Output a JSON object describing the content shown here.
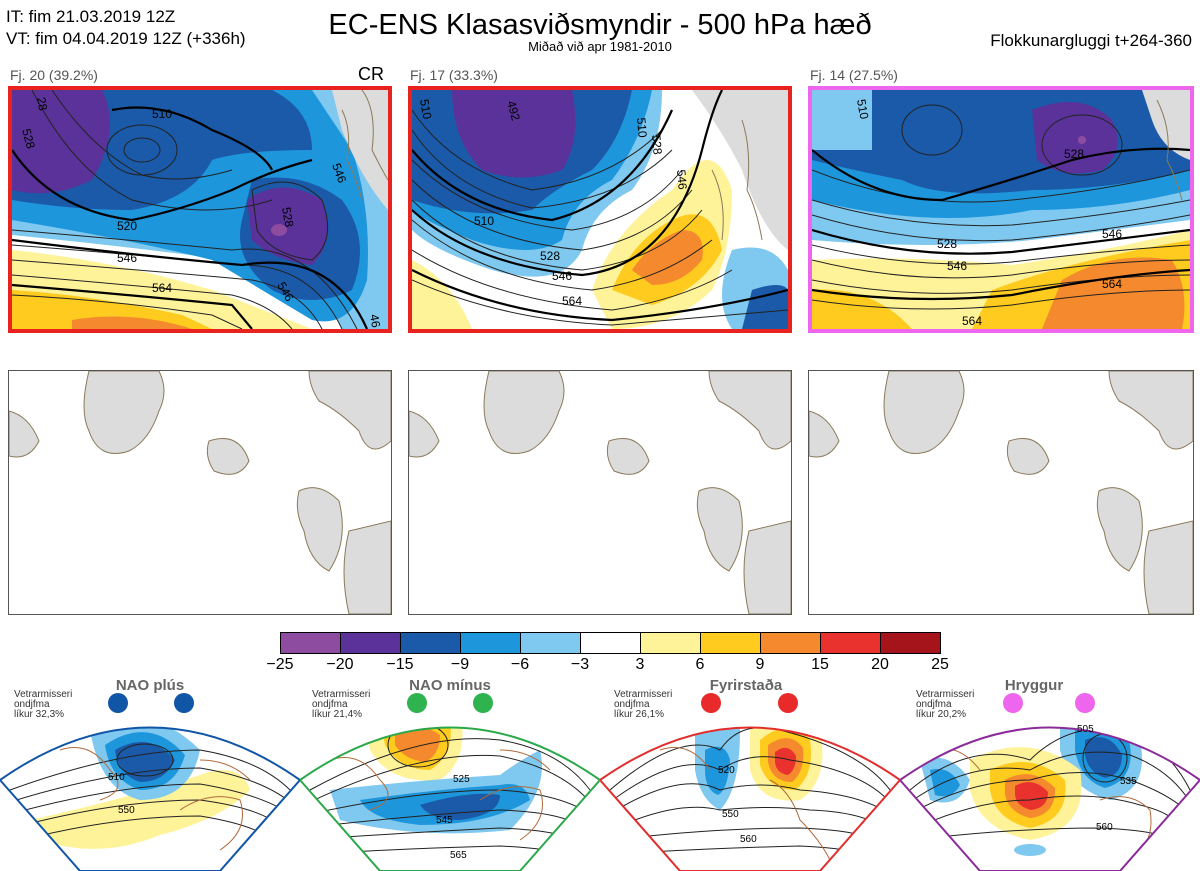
{
  "header": {
    "init_time": "IT: fim 21.03.2019 12Z",
    "valid_time": "VT: fim 04.04.2019 12Z  (+336h)",
    "title": "EC-ENS Klasasviðsmyndir - 500 hPa hæð",
    "subtitle": "Miðað við apr 1981-2010",
    "window": "Flokkunargluggi t+264-360"
  },
  "clusters": [
    {
      "label": "Fj. 20 (39.2%)",
      "tag": "CR",
      "border_color": "#e8231f",
      "contours": [
        "510",
        "528",
        "546",
        "528",
        "520",
        "546",
        "564",
        "546",
        "46",
        "28"
      ]
    },
    {
      "label": "Fj. 17 (33.3%)",
      "tag": "",
      "border_color": "#e8231f",
      "contours": [
        "492",
        "510",
        "528",
        "546",
        "510",
        "528",
        "546",
        "564",
        "510"
      ]
    },
    {
      "label": "Fj. 14 (27.5%)",
      "tag": "",
      "border_color": "#ee66ee",
      "contours": [
        "528",
        "528",
        "546",
        "546",
        "564",
        "564",
        "510"
      ]
    }
  ],
  "colorbar": {
    "ticks": [
      "−25",
      "−20",
      "−15",
      "−9",
      "−6",
      "−3",
      "3",
      "6",
      "9",
      "15",
      "20",
      "25"
    ],
    "colors": [
      "#8e4ca0",
      "#5a3299",
      "#1b5aa8",
      "#1e96dc",
      "#7fc8ef",
      "#ffffff",
      "#fff39a",
      "#fecb1e",
      "#f5892d",
      "#e9322e",
      "#a4141a"
    ]
  },
  "regimes": [
    {
      "name": "NAO plús",
      "info": "Vetrarmisseri\nondjfma\nlíkur 32,3%",
      "color": "#1155a6",
      "dot_color": "#1155a6",
      "labels": [
        "510",
        "550"
      ]
    },
    {
      "name": "NAO mínus",
      "info": "Vetrarmisseri\nondjfma\nlíkur 21,4%",
      "color": "#2aa84a",
      "dot_color": "#2eb34f",
      "labels": [
        "525",
        "545",
        "565"
      ]
    },
    {
      "name": "Fyrirstaða",
      "info": "Vetrarmisseri\nondjfma\nlíkur 26,1%",
      "color": "#e32c2c",
      "dot_color": "#e82a2a",
      "labels": [
        "520",
        "550",
        "560"
      ]
    },
    {
      "name": "Hryggur",
      "info": "Vetrarmisseri\nondjfma\nlíkur 20,2%",
      "color": "#8b2b9a",
      "dot_color": "#ee66ee",
      "labels": [
        "505",
        "535",
        "560"
      ]
    }
  ]
}
